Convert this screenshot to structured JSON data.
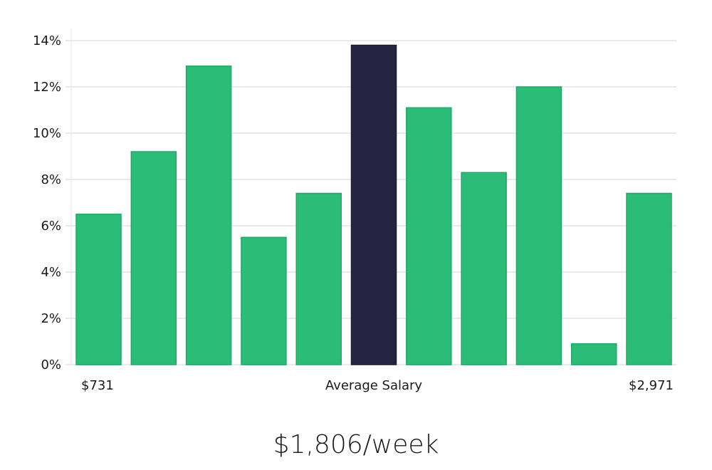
{
  "chart_data": {
    "type": "bar",
    "y_ticks": [
      "0%",
      "2%",
      "4%",
      "6%",
      "8%",
      "10%",
      "12%",
      "14%"
    ],
    "ylim": [
      0,
      14
    ],
    "values": [
      6.5,
      9.2,
      12.9,
      5.5,
      7.4,
      13.8,
      11.1,
      8.3,
      12.0,
      0.9,
      7.4
    ],
    "highlight_index": 5,
    "x_labels": {
      "left": "$731",
      "center": "Average Salary",
      "right": "$2,971"
    },
    "grid": true,
    "colors": {
      "bar": "#2bbd78",
      "highlight": "#27243f",
      "grid": "#e4e4e4"
    }
  },
  "summary": "$1,806/week"
}
